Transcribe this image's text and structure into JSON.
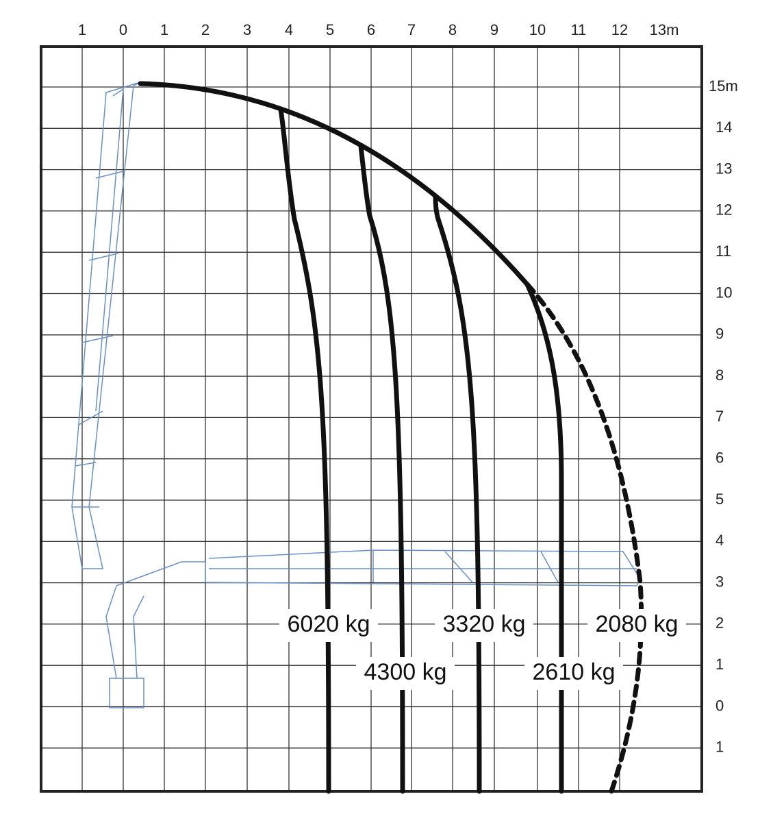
{
  "x_labels": [
    "1",
    "0",
    "1",
    "2",
    "3",
    "4",
    "5",
    "6",
    "7",
    "8",
    "9",
    "10",
    "11",
    "12",
    "13m"
  ],
  "y_labels": [
    "15m",
    "14",
    "13",
    "12",
    "11",
    "10",
    "9",
    "8",
    "7",
    "6",
    "5",
    "4",
    "3",
    "2",
    "1",
    "0",
    "1"
  ],
  "loads": [
    "6020 kg",
    "4300 kg",
    "3320 kg",
    "2610 kg",
    "2080 kg"
  ]
}
